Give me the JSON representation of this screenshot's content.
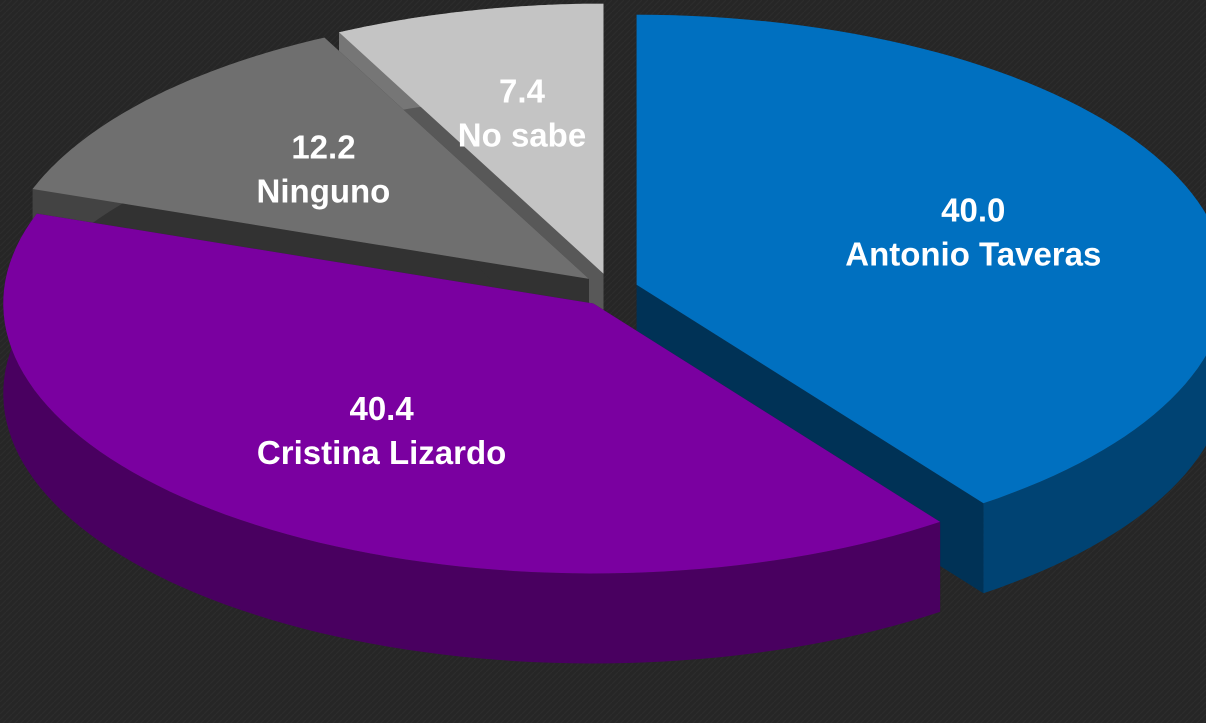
{
  "chart_data": {
    "type": "pie",
    "categories": [
      "Antonio Taveras",
      "Cristina Lizardo",
      "Ninguno",
      "No sabe"
    ],
    "values": [
      40.0,
      40.4,
      12.2,
      7.4
    ],
    "value_labels": [
      "40.0",
      "40.4",
      "12.2",
      "7.4"
    ],
    "colors": [
      "#0070c0",
      "#7a00a0",
      "#6f6f6f",
      "#c4c4c4"
    ]
  }
}
